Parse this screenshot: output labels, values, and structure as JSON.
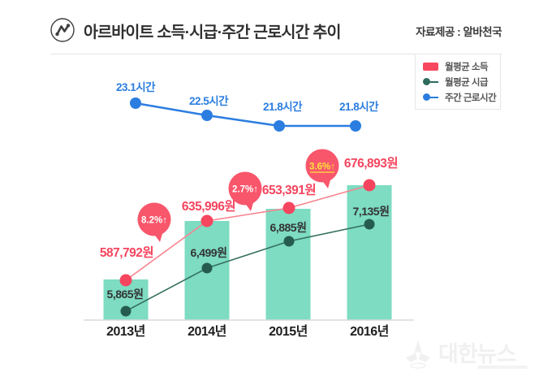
{
  "header": {
    "title": "아르바이트 소득·시급·주간 근로시간 추이",
    "source": "자료제공 : 알바천국"
  },
  "legend": {
    "items": [
      {
        "label": "월평균 소득",
        "swatch": "rect",
        "color": "#f8485e"
      },
      {
        "label": "월평균 시급",
        "swatch": "dot-line",
        "color": "#2d6b5e"
      },
      {
        "label": "주간 근로시간",
        "swatch": "dot-line",
        "color": "#2b7de0"
      }
    ]
  },
  "watermark": {
    "text": "대한뉴스"
  },
  "chart_data": {
    "type": "bar",
    "subtype": "bar + line combo infographic (bar heights stylized, not to scale)",
    "title": "아르바이트 소득·시급·주간 근로시간 추이",
    "categories": [
      "2013년",
      "2014년",
      "2015년",
      "2016년"
    ],
    "bars": {
      "series": "월평균 소득",
      "color": "#7ddcc2"
    },
    "series": [
      {
        "name": "월평균 소득",
        "type": "line",
        "unit": "원",
        "values": [
          587792,
          635996,
          653391,
          676893
        ],
        "labels": [
          "587,792원",
          "635,996원",
          "653,391원",
          "676,893원"
        ],
        "line_color": "#f8838f",
        "dot_color": "#f5455f",
        "label_color": "#f5455f"
      },
      {
        "name": "월평균 시급",
        "type": "line",
        "unit": "원",
        "values": [
          5865,
          6499,
          6885,
          7135
        ],
        "labels": [
          "5,865원",
          "6,499원",
          "6,885원",
          "7,135원"
        ],
        "line_color": "#35705f",
        "dot_color": "#265c50",
        "label_color": "#333333"
      },
      {
        "name": "주간 근로시간",
        "type": "line",
        "unit": "시간",
        "values": [
          23.1,
          22.5,
          21.8,
          21.8
        ],
        "labels": [
          "23.1시간",
          "22.5시간",
          "21.8시간",
          "21.8시간"
        ],
        "line_color": "#2b7de0",
        "dot_color": "#2b7de0",
        "label_color": "#2b7de0"
      }
    ],
    "growth_badges": [
      {
        "text": "8.2%↑",
        "between": [
          "2013년",
          "2014년"
        ],
        "text_color": "#ffffff",
        "underline": false
      },
      {
        "text": "2.7%↑",
        "between": [
          "2014년",
          "2015년"
        ],
        "text_color": "#ffffff",
        "underline": false
      },
      {
        "text": "3.6%↑",
        "between": [
          "2015년",
          "2016년"
        ],
        "text_color": "#ffe23c",
        "underline": true
      }
    ],
    "badge_fill": "#f8566b",
    "legend_position": "top-right",
    "grid": false
  }
}
